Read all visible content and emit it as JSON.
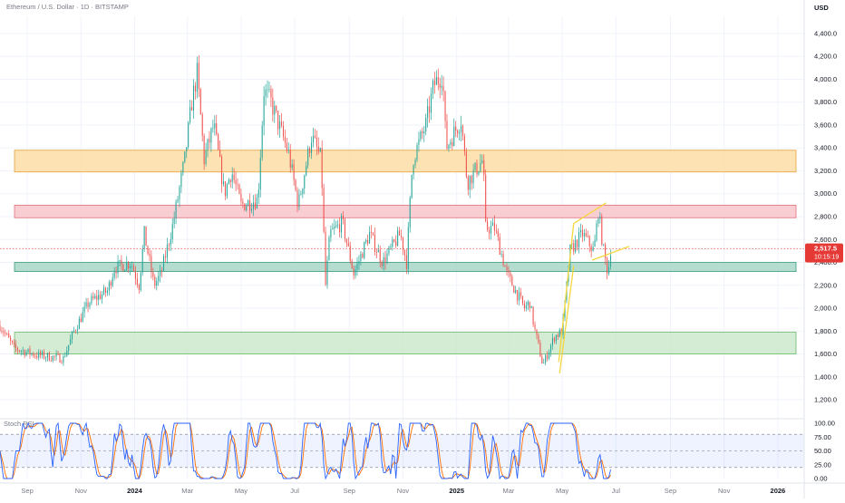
{
  "chart_data": {
    "type": "candlestick",
    "title": "Ethereum / U.S. Dollar · 1D · BITSTAMP",
    "currency": "USD",
    "current_price": "2,517.5",
    "countdown": "10:15:19",
    "price_axis": {
      "ylim": [
        1050,
        4550
      ],
      "ticks": [
        "1,200.0",
        "1,400.0",
        "1,600.0",
        "1,800.0",
        "2,000.0",
        "2,200.0",
        "2,400.0",
        "2,600.0",
        "2,800.0",
        "3,000.0",
        "3,200.0",
        "3,400.0",
        "3,600.0",
        "3,800.0",
        "4,000.0",
        "4,200.0",
        "4,400.0"
      ],
      "tick_values": [
        1200,
        1400,
        1600,
        1800,
        2000,
        2200,
        2400,
        2600,
        2800,
        3000,
        3200,
        3400,
        3600,
        3800,
        4000,
        4200,
        4400
      ]
    },
    "time_axis": {
      "labels": [
        "Sep",
        "Nov",
        "2024",
        "Mar",
        "May",
        "Jul",
        "Sep",
        "Nov",
        "2025",
        "Mar",
        "May",
        "Jul",
        "Sep",
        "Nov",
        "2026"
      ],
      "bold": [
        "2024",
        "2025",
        "2026"
      ],
      "start": "2023-08-01",
      "end": "2026-01-31"
    },
    "price_path": [
      [
        "2023-08-01",
        1850
      ],
      [
        "2023-08-17",
        1650
      ],
      [
        "2023-09-12",
        1590
      ],
      [
        "2023-10-12",
        1560
      ],
      [
        "2023-10-24",
        1800
      ],
      [
        "2023-11-10",
        2050
      ],
      [
        "2023-12-01",
        2150
      ],
      [
        "2023-12-09",
        2350
      ],
      [
        "2023-12-28",
        2400
      ],
      [
        "2024-01-06",
        2200
      ],
      [
        "2024-01-12",
        2650
      ],
      [
        "2024-01-23",
        2200
      ],
      [
        "2024-01-31",
        2300
      ],
      [
        "2024-02-14",
        2750
      ],
      [
        "2024-02-27",
        3300
      ],
      [
        "2024-03-06",
        3800
      ],
      [
        "2024-03-12",
        4050
      ],
      [
        "2024-03-20",
        3300
      ],
      [
        "2024-03-31",
        3600
      ],
      [
        "2024-04-12",
        3000
      ],
      [
        "2024-04-20",
        3200
      ],
      [
        "2024-05-01",
        2900
      ],
      [
        "2024-05-20",
        2950
      ],
      [
        "2024-05-27",
        3900
      ],
      [
        "2024-06-04",
        3800
      ],
      [
        "2024-06-24",
        3350
      ],
      [
        "2024-07-05",
        2900
      ],
      [
        "2024-07-20",
        3500
      ],
      [
        "2024-07-31",
        3300
      ],
      [
        "2024-08-05",
        2200
      ],
      [
        "2024-08-10",
        2650
      ],
      [
        "2024-08-24",
        2750
      ],
      [
        "2024-09-06",
        2300
      ],
      [
        "2024-09-24",
        2650
      ],
      [
        "2024-10-09",
        2400
      ],
      [
        "2024-10-29",
        2650
      ],
      [
        "2024-11-05",
        2400
      ],
      [
        "2024-11-12",
        3300
      ],
      [
        "2024-11-27",
        3600
      ],
      [
        "2024-12-06",
        3950
      ],
      [
        "2024-12-16",
        4050
      ],
      [
        "2024-12-20",
        3400
      ],
      [
        "2025-01-06",
        3650
      ],
      [
        "2025-01-13",
        3100
      ],
      [
        "2025-01-31",
        3300
      ],
      [
        "2025-02-03",
        2700
      ],
      [
        "2025-02-13",
        2700
      ],
      [
        "2025-02-27",
        2300
      ],
      [
        "2025-03-09",
        2150
      ],
      [
        "2025-03-19",
        2000
      ],
      [
        "2025-03-25",
        2050
      ],
      [
        "2025-03-31",
        1800
      ],
      [
        "2025-04-09",
        1500
      ],
      [
        "2025-04-22",
        1750
      ],
      [
        "2025-05-01",
        1800
      ],
      [
        "2025-05-10",
        2500
      ],
      [
        "2025-05-24",
        2650
      ],
      [
        "2025-06-06",
        2500
      ],
      [
        "2025-06-11",
        2850
      ],
      [
        "2025-06-17",
        2500
      ],
      [
        "2025-06-22",
        2300
      ],
      [
        "2025-06-25",
        2517.5
      ]
    ],
    "zones": [
      {
        "name": "resistance-orange",
        "from": 3190,
        "to": 3380,
        "fill": "#FDDDA6",
        "stroke": "#E5A23B"
      },
      {
        "name": "resistance-red",
        "from": 2790,
        "to": 2900,
        "fill": "#F8C6CB",
        "stroke": "#E0707A"
      },
      {
        "name": "support-teal",
        "from": 2320,
        "to": 2400,
        "fill": "#A7D6C7",
        "stroke": "#3C9C80"
      },
      {
        "name": "support-green",
        "from": 1600,
        "to": 1790,
        "fill": "#CDE8CC",
        "stroke": "#6BB86B"
      }
    ],
    "trendlines": [
      {
        "from": [
          "2025-04-28",
          1430
        ],
        "to": [
          "2025-05-14",
          2370
        ]
      },
      {
        "from": [
          "2025-04-27",
          1530
        ],
        "to": [
          "2025-05-14",
          2740
        ]
      },
      {
        "from": [
          "2025-05-14",
          2740
        ],
        "to": [
          "2025-06-20",
          2920
        ]
      },
      {
        "from": [
          "2025-06-04",
          2420
        ],
        "to": [
          "2025-07-16",
          2540
        ]
      }
    ],
    "colors": {
      "up": "#26A69A",
      "down": "#EF5350",
      "trendline": "#F5D63D",
      "current": "#E53935"
    },
    "stoch_rsi": {
      "label": "Stoch RSI",
      "ylim": [
        0,
        100
      ],
      "ticks": [
        "100.00",
        "75.00",
        "50.00",
        "25.00",
        "0.00"
      ],
      "tick_values": [
        100,
        75,
        50,
        25,
        0
      ],
      "band": [
        20,
        80
      ],
      "k_color": "#2962FF",
      "d_color": "#FF6D00"
    }
  }
}
